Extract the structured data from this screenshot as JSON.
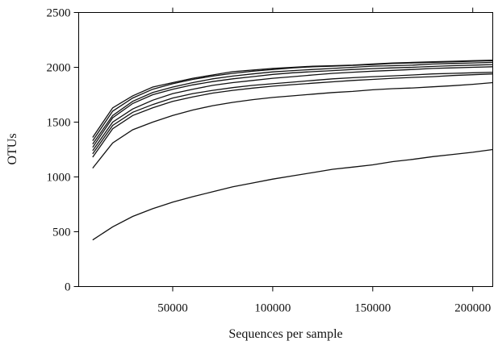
{
  "chart_data": {
    "type": "line",
    "xlabel": "Sequences per sample",
    "ylabel": "OTUs",
    "xlim": [
      3000,
      210000
    ],
    "ylim": [
      0,
      2500
    ],
    "xticks": [
      50000,
      100000,
      150000,
      200000
    ],
    "yticks": [
      0,
      500,
      1000,
      1500,
      2000,
      2500
    ],
    "xtick_labels": [
      "50000",
      "100000",
      "150000",
      "200000"
    ],
    "ytick_labels": [
      "0",
      "500",
      "1000",
      "1500",
      "2000",
      "2500"
    ],
    "grid": false,
    "x": [
      10000,
      20000,
      30000,
      40000,
      50000,
      60000,
      70000,
      80000,
      90000,
      100000,
      110000,
      120000,
      130000,
      140000,
      150000,
      160000,
      170000,
      180000,
      190000,
      200000,
      210000
    ],
    "series": [
      {
        "values": [
          1360,
          1630,
          1740,
          1820,
          1860,
          1900,
          1930,
          1960,
          1975,
          1990,
          2000,
          2010,
          2015,
          2020,
          2030,
          2040,
          2045,
          2050,
          2055,
          2060,
          2065
        ]
      },
      {
        "values": [
          1330,
          1600,
          1720,
          1800,
          1850,
          1890,
          1920,
          1945,
          1965,
          1980,
          1995,
          2005,
          2010,
          2018,
          2025,
          2035,
          2040,
          2045,
          2050,
          2055,
          2060
        ]
      },
      {
        "values": [
          1300,
          1560,
          1690,
          1770,
          1820,
          1860,
          1895,
          1920,
          1940,
          1958,
          1970,
          1980,
          1990,
          2000,
          2010,
          2015,
          2020,
          2030,
          2035,
          2040,
          2045
        ]
      },
      {
        "values": [
          1270,
          1540,
          1670,
          1750,
          1800,
          1840,
          1870,
          1895,
          1915,
          1935,
          1950,
          1960,
          1970,
          1980,
          1988,
          1995,
          2000,
          2008,
          2015,
          2020,
          2025
        ]
      },
      {
        "values": [
          1240,
          1500,
          1620,
          1700,
          1760,
          1800,
          1835,
          1860,
          1880,
          1900,
          1915,
          1930,
          1945,
          1955,
          1965,
          1972,
          1980,
          1990,
          1995,
          2000,
          2005
        ]
      },
      {
        "values": [
          1210,
          1470,
          1590,
          1660,
          1720,
          1760,
          1790,
          1815,
          1835,
          1850,
          1865,
          1880,
          1895,
          1905,
          1915,
          1922,
          1930,
          1940,
          1945,
          1950,
          1955
        ]
      },
      {
        "values": [
          1180,
          1440,
          1560,
          1630,
          1690,
          1730,
          1765,
          1790,
          1810,
          1828,
          1842,
          1855,
          1868,
          1880,
          1890,
          1900,
          1908,
          1915,
          1925,
          1932,
          1940
        ]
      },
      {
        "values": [
          1080,
          1310,
          1430,
          1500,
          1560,
          1610,
          1650,
          1680,
          1705,
          1725,
          1740,
          1755,
          1770,
          1780,
          1795,
          1805,
          1812,
          1822,
          1832,
          1845,
          1860
        ]
      },
      {
        "values": [
          425,
          545,
          640,
          710,
          770,
          820,
          865,
          910,
          945,
          980,
          1010,
          1040,
          1070,
          1090,
          1110,
          1140,
          1160,
          1185,
          1205,
          1225,
          1250
        ]
      }
    ]
  }
}
